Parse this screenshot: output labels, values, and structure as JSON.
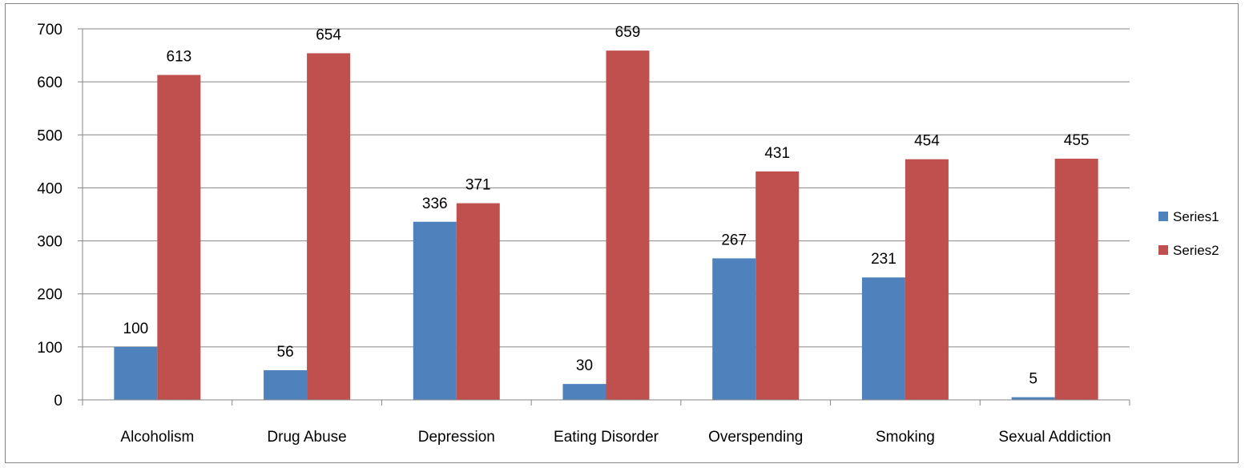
{
  "chart_data": {
    "type": "bar",
    "categories": [
      "Alcoholism",
      "Drug Abuse",
      "Depression",
      "Eating Disorder",
      "Overspending",
      "Smoking",
      "Sexual Addiction"
    ],
    "series": [
      {
        "name": "Series1",
        "color": "#4F81BD",
        "values": [
          100,
          56,
          336,
          30,
          267,
          231,
          5
        ]
      },
      {
        "name": "Series2",
        "color": "#C0504D",
        "values": [
          613,
          654,
          371,
          659,
          431,
          454,
          455
        ]
      }
    ],
    "yticks": [
      0,
      100,
      200,
      300,
      400,
      500,
      600,
      700
    ],
    "ylim": [
      0,
      700
    ],
    "grid": true,
    "legend": "right",
    "title": "",
    "xlabel": "",
    "ylabel": ""
  }
}
